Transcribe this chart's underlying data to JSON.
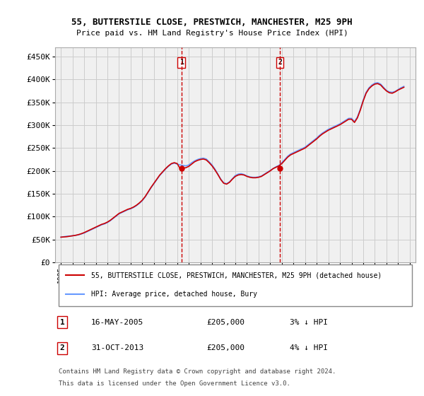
{
  "title1": "55, BUTTERSTILE CLOSE, PRESTWICH, MANCHESTER, M25 9PH",
  "title2": "Price paid vs. HM Land Registry's House Price Index (HPI)",
  "ylabel_ticks": [
    "£0",
    "£50K",
    "£100K",
    "£150K",
    "£200K",
    "£250K",
    "£300K",
    "£350K",
    "£400K",
    "£450K"
  ],
  "ytick_values": [
    0,
    50000,
    100000,
    150000,
    200000,
    250000,
    300000,
    350000,
    400000,
    450000
  ],
  "ylim": [
    0,
    470000
  ],
  "xlim_start": 1994.5,
  "xlim_end": 2025.5,
  "grid_color": "#cccccc",
  "bg_color": "#ffffff",
  "plot_bg_color": "#f0f0f0",
  "hpi_line_color": "#6699ff",
  "price_line_color": "#cc0000",
  "purchase1_x": 2005.37,
  "purchase1_y": 205000,
  "purchase2_x": 2013.83,
  "purchase2_y": 205000,
  "legend_label1": "55, BUTTERSTILE CLOSE, PRESTWICH, MANCHESTER, M25 9PH (detached house)",
  "legend_label2": "HPI: Average price, detached house, Bury",
  "annotation1_label": "1",
  "annotation2_label": "2",
  "table_row1": [
    "1",
    "16-MAY-2005",
    "£205,000",
    "3% ↓ HPI"
  ],
  "table_row2": [
    "2",
    "31-OCT-2013",
    "£205,000",
    "4% ↓ HPI"
  ],
  "footer1": "Contains HM Land Registry data © Crown copyright and database right 2024.",
  "footer2": "This data is licensed under the Open Government Licence v3.0.",
  "hpi_data_x": [
    1995,
    1995.25,
    1995.5,
    1995.75,
    1996,
    1996.25,
    1996.5,
    1996.75,
    1997,
    1997.25,
    1997.5,
    1997.75,
    1998,
    1998.25,
    1998.5,
    1998.75,
    1999,
    1999.25,
    1999.5,
    1999.75,
    2000,
    2000.25,
    2000.5,
    2000.75,
    2001,
    2001.25,
    2001.5,
    2001.75,
    2002,
    2002.25,
    2002.5,
    2002.75,
    2003,
    2003.25,
    2003.5,
    2003.75,
    2004,
    2004.25,
    2004.5,
    2004.75,
    2005,
    2005.25,
    2005.5,
    2005.75,
    2006,
    2006.25,
    2006.5,
    2006.75,
    2007,
    2007.25,
    2007.5,
    2007.75,
    2008,
    2008.25,
    2008.5,
    2008.75,
    2009,
    2009.25,
    2009.5,
    2009.75,
    2010,
    2010.25,
    2010.5,
    2010.75,
    2011,
    2011.25,
    2011.5,
    2011.75,
    2012,
    2012.25,
    2012.5,
    2012.75,
    2013,
    2013.25,
    2013.5,
    2013.75,
    2014,
    2014.25,
    2014.5,
    2014.75,
    2015,
    2015.25,
    2015.5,
    2015.75,
    2016,
    2016.25,
    2016.5,
    2016.75,
    2017,
    2017.25,
    2017.5,
    2017.75,
    2018,
    2018.25,
    2018.5,
    2018.75,
    2019,
    2019.25,
    2019.5,
    2019.75,
    2020,
    2020.25,
    2020.5,
    2020.75,
    2021,
    2021.25,
    2021.5,
    2021.75,
    2022,
    2022.25,
    2022.5,
    2022.75,
    2023,
    2023.25,
    2023.5,
    2023.75,
    2024,
    2024.25,
    2024.5
  ],
  "hpi_data_y": [
    55000,
    56000,
    57000,
    57500,
    58000,
    59000,
    60000,
    62000,
    64000,
    67000,
    70000,
    73000,
    76000,
    79000,
    82000,
    84000,
    87000,
    91000,
    96000,
    101000,
    106000,
    109000,
    112000,
    115000,
    117000,
    120000,
    124000,
    129000,
    135000,
    143000,
    153000,
    163000,
    172000,
    181000,
    190000,
    197000,
    204000,
    210000,
    215000,
    217000,
    215000,
    213000,
    212000,
    211000,
    213000,
    218000,
    222000,
    225000,
    227000,
    228000,
    226000,
    220000,
    213000,
    204000,
    193000,
    182000,
    174000,
    172000,
    176000,
    183000,
    190000,
    193000,
    194000,
    192000,
    189000,
    187000,
    186000,
    186000,
    187000,
    189000,
    193000,
    197000,
    201000,
    205000,
    209000,
    212000,
    218000,
    225000,
    232000,
    237000,
    240000,
    243000,
    246000,
    249000,
    252000,
    257000,
    262000,
    267000,
    272000,
    278000,
    283000,
    287000,
    291000,
    294000,
    297000,
    300000,
    303000,
    307000,
    311000,
    315000,
    315000,
    308000,
    318000,
    335000,
    355000,
    372000,
    382000,
    388000,
    392000,
    393000,
    390000,
    383000,
    376000,
    373000,
    372000,
    374000,
    378000,
    382000,
    385000
  ],
  "price_data_x": [
    1995,
    1995.25,
    1995.5,
    1995.75,
    1996,
    1996.25,
    1996.5,
    1996.75,
    1997,
    1997.25,
    1997.5,
    1997.75,
    1998,
    1998.25,
    1998.5,
    1998.75,
    1999,
    1999.25,
    1999.5,
    1999.75,
    2000,
    2000.25,
    2000.5,
    2000.75,
    2001,
    2001.25,
    2001.5,
    2001.75,
    2002,
    2002.25,
    2002.5,
    2002.75,
    2003,
    2003.25,
    2003.5,
    2003.75,
    2004,
    2004.25,
    2004.5,
    2004.75,
    2005,
    2005.25,
    2005.5,
    2005.75,
    2006,
    2006.25,
    2006.5,
    2006.75,
    2007,
    2007.25,
    2007.5,
    2007.75,
    2008,
    2008.25,
    2008.5,
    2008.75,
    2009,
    2009.25,
    2009.5,
    2009.75,
    2010,
    2010.25,
    2010.5,
    2010.75,
    2011,
    2011.25,
    2011.5,
    2011.75,
    2012,
    2012.25,
    2012.5,
    2012.75,
    2013,
    2013.25,
    2013.5,
    2013.75,
    2014,
    2014.25,
    2014.5,
    2014.75,
    2015,
    2015.25,
    2015.5,
    2015.75,
    2016,
    2016.25,
    2016.5,
    2016.75,
    2017,
    2017.25,
    2017.5,
    2017.75,
    2018,
    2018.25,
    2018.5,
    2018.75,
    2019,
    2019.25,
    2019.5,
    2019.75,
    2020,
    2020.25,
    2020.5,
    2020.75,
    2021,
    2021.25,
    2021.5,
    2021.75,
    2022,
    2022.25,
    2022.5,
    2022.75,
    2023,
    2023.25,
    2023.5,
    2023.75,
    2024,
    2024.25,
    2024.5
  ],
  "price_data_y": [
    55000,
    55500,
    56000,
    57000,
    58000,
    59000,
    60500,
    62500,
    65000,
    68000,
    71000,
    74000,
    77000,
    80000,
    83000,
    85000,
    88000,
    92000,
    97000,
    102000,
    107000,
    110000,
    113000,
    116000,
    118000,
    121000,
    125000,
    130000,
    136000,
    144000,
    154000,
    164000,
    173000,
    182000,
    191000,
    198000,
    205000,
    211000,
    216000,
    218000,
    216000,
    205000,
    206000,
    207000,
    210000,
    215000,
    220000,
    223000,
    225000,
    226000,
    224000,
    218000,
    211000,
    202000,
    192000,
    181000,
    173000,
    171000,
    175000,
    182000,
    188000,
    191000,
    192000,
    191000,
    188000,
    186000,
    185000,
    185000,
    186000,
    188000,
    192000,
    196000,
    200000,
    205000,
    208000,
    211000,
    216000,
    223000,
    230000,
    235000,
    238000,
    241000,
    244000,
    247000,
    250000,
    255000,
    260000,
    265000,
    270000,
    276000,
    281000,
    285000,
    289000,
    292000,
    295000,
    298000,
    301000,
    305000,
    309000,
    313000,
    313000,
    306000,
    316000,
    333000,
    353000,
    370000,
    380000,
    386000,
    390000,
    391000,
    388000,
    381000,
    375000,
    371000,
    370000,
    373000,
    377000,
    380000,
    383000
  ]
}
